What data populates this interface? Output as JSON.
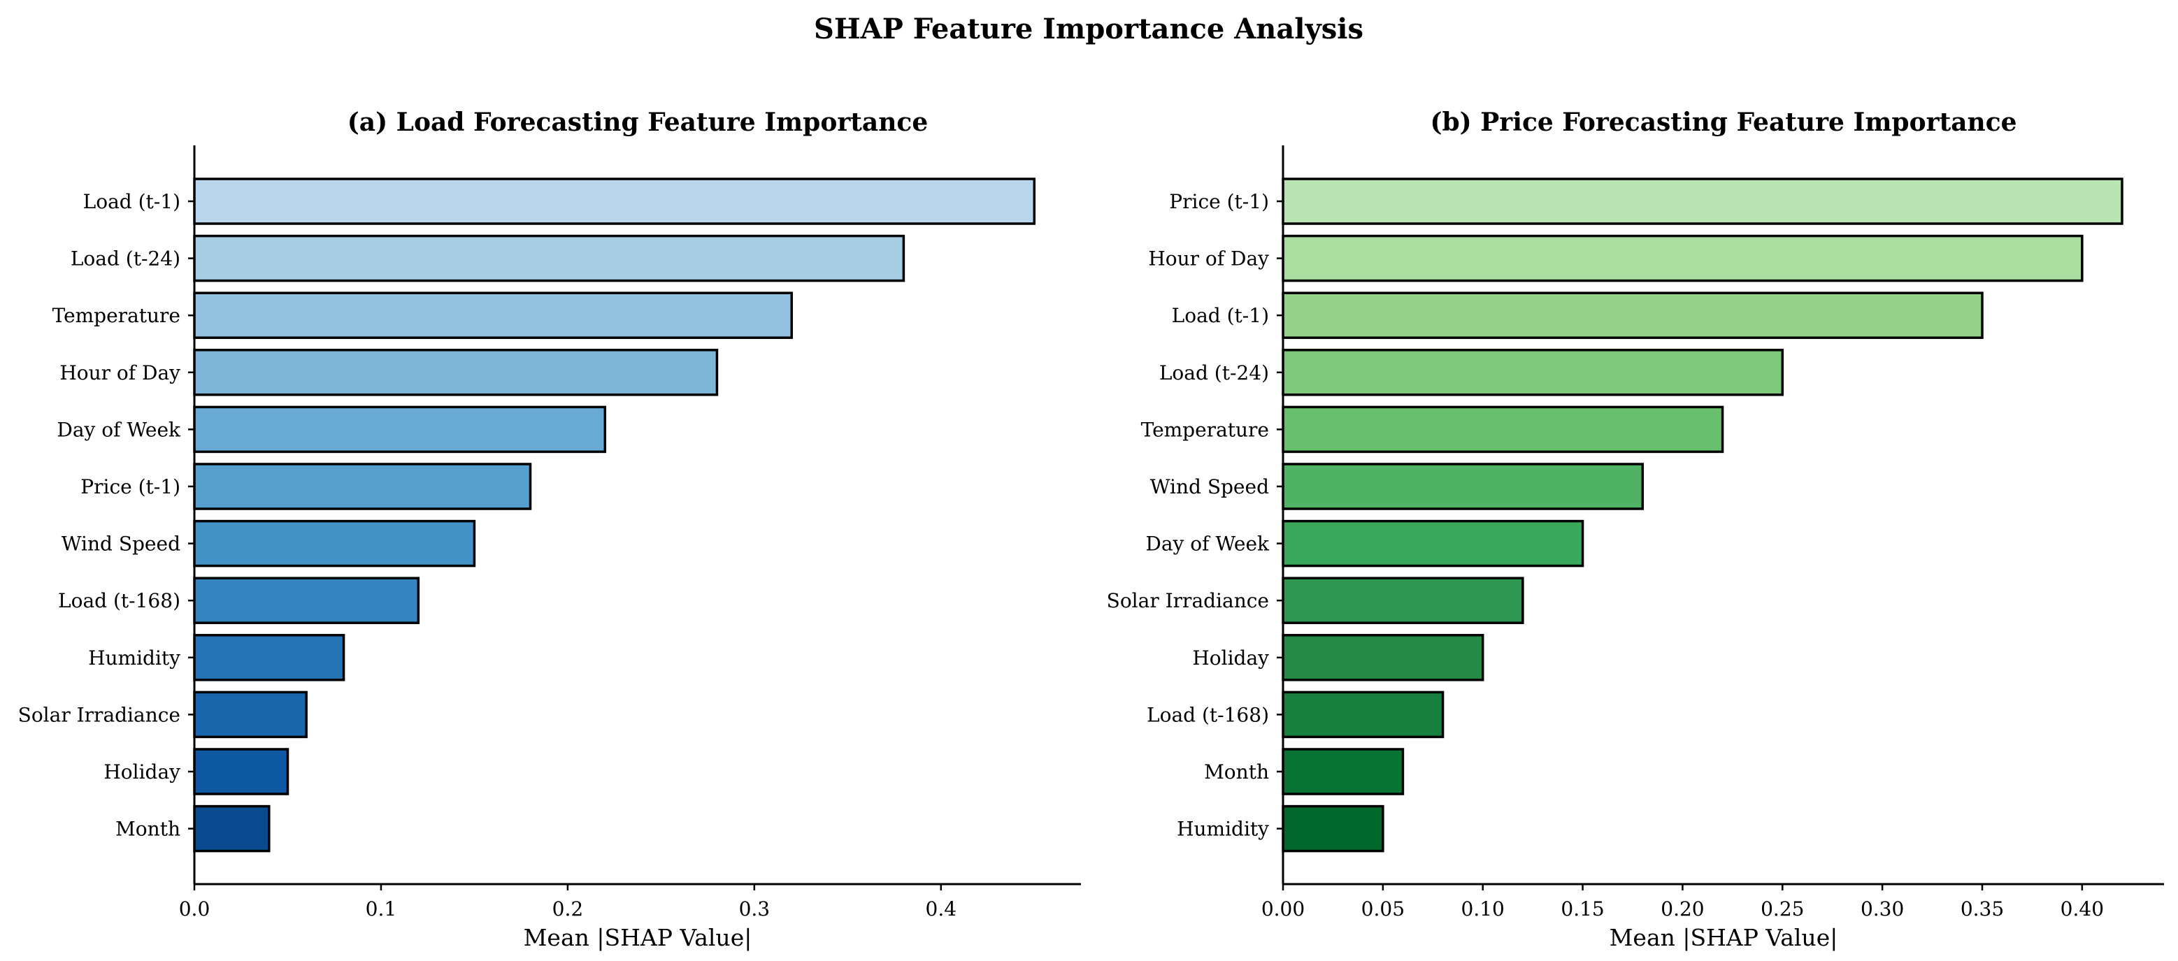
{
  "figure": {
    "title": "SHAP Feature Importance Analysis"
  },
  "chart_data": [
    {
      "type": "bar",
      "orientation": "horizontal",
      "title": "(a) Load Forecasting Feature Importance",
      "xlabel": "Mean |SHAP Value|",
      "ylabel": "",
      "xlim": [
        0,
        0.475
      ],
      "xticks": [
        0.0,
        0.1,
        0.2,
        0.3,
        0.4
      ],
      "xtick_labels": [
        "0.0",
        "0.1",
        "0.2",
        "0.3",
        "0.4"
      ],
      "categories": [
        "Load (t-1)",
        "Load (t-24)",
        "Temperature",
        "Hour of Day",
        "Day of Week",
        "Price (t-1)",
        "Wind Speed",
        "Load (t-168)",
        "Humidity",
        "Solar Irradiance",
        "Holiday",
        "Month"
      ],
      "values": [
        0.45,
        0.38,
        0.32,
        0.28,
        0.22,
        0.18,
        0.15,
        0.12,
        0.08,
        0.06,
        0.05,
        0.04
      ],
      "colors": [
        "#b8d5ec",
        "#a6cde3",
        "#92c2df",
        "#7db6d9",
        "#68aad4",
        "#56a0ce",
        "#4292c6",
        "#3484c0",
        "#2575b7",
        "#1a67ad",
        "#0e58a2",
        "#094b8e"
      ],
      "grid": false
    },
    {
      "type": "bar",
      "orientation": "horizontal",
      "title": "(b) Price Forecasting Feature Importance",
      "xlabel": "Mean |SHAP Value|",
      "ylabel": "",
      "xlim": [
        0,
        0.441
      ],
      "xticks": [
        0.0,
        0.05,
        0.1,
        0.15,
        0.2,
        0.25,
        0.3,
        0.35,
        0.4
      ],
      "xtick_labels": [
        "0.00",
        "0.05",
        "0.10",
        "0.15",
        "0.20",
        "0.25",
        "0.30",
        "0.35",
        "0.40"
      ],
      "categories": [
        "Price (t-1)",
        "Hour of Day",
        "Load (t-1)",
        "Load (t-24)",
        "Temperature",
        "Wind Speed",
        "Day of Week",
        "Solar Irradiance",
        "Holiday",
        "Load (t-168)",
        "Month",
        "Humidity"
      ],
      "values": [
        0.42,
        0.4,
        0.35,
        0.25,
        0.22,
        0.18,
        0.15,
        0.12,
        0.1,
        0.08,
        0.06,
        0.05
      ],
      "colors": [
        "#bae4b3",
        "#aadda0",
        "#95d38a",
        "#7ec97b",
        "#68bf6e",
        "#50b264",
        "#3aa85b",
        "#2f9850",
        "#238b45",
        "#17803e",
        "#087433",
        "#00682b"
      ],
      "grid": false
    }
  ]
}
